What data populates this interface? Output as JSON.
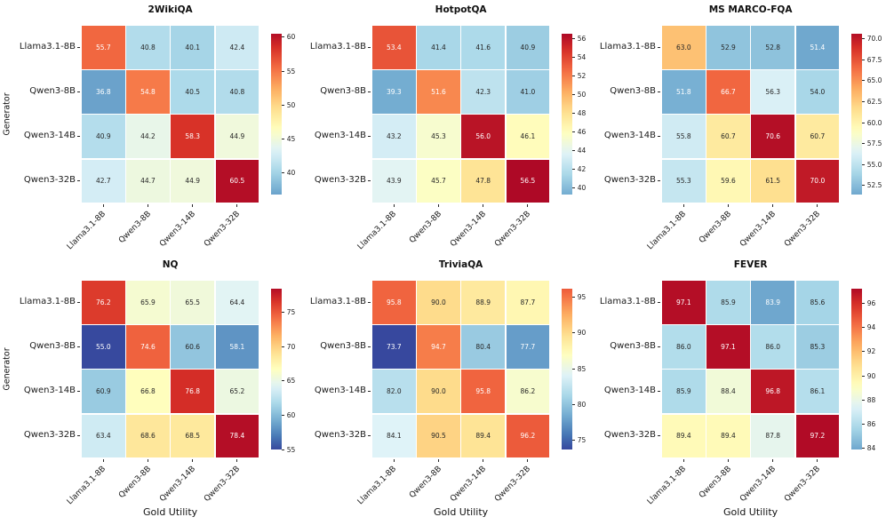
{
  "figure": {
    "background": "#ffffff",
    "ylabel": "Generator",
    "xlabel": "Gold Utility",
    "generators": [
      "Llama3.1-8B",
      "Qwen3-8B",
      "Qwen3-14B",
      "Qwen3-32B"
    ],
    "annotation_text_dark": "#262626",
    "annotation_text_light": "#ffffff",
    "colormap_name": "RdYlBu_r",
    "colormap_stops": [
      "#313695",
      "#4575b4",
      "#74add1",
      "#abd9e9",
      "#e0f3f8",
      "#ffffbf",
      "#fee090",
      "#fdae61",
      "#f46d43",
      "#d73027",
      "#a50026"
    ]
  },
  "chart_data": [
    {
      "type": "heatmap",
      "slug": "2wikiqa",
      "title": "2WikiQA",
      "categories": [
        "Llama3.1-8B",
        "Qwen3-8B",
        "Qwen3-14B",
        "Qwen3-32B"
      ],
      "values": [
        [
          55.7,
          40.8,
          40.1,
          42.4
        ],
        [
          36.8,
          54.8,
          40.5,
          40.8
        ],
        [
          40.9,
          44.2,
          58.3,
          44.9
        ],
        [
          42.7,
          44.7,
          44.9,
          60.5
        ]
      ],
      "color_domain": [
        31.4,
        61.4
      ],
      "colorbar": {
        "range": [
          36.8,
          60.5
        ],
        "tick_values": [
          60,
          55,
          50,
          45,
          40
        ],
        "tick_labels": [
          "60",
          "55",
          "50",
          "45",
          "40"
        ]
      },
      "show_ylabel": true,
      "show_xlabel": false
    },
    {
      "type": "heatmap",
      "slug": "hotpotqa",
      "title": "HotpotQA",
      "categories": [
        "Llama3.1-8B",
        "Qwen3-8B",
        "Qwen3-14B",
        "Qwen3-32B"
      ],
      "values": [
        [
          53.4,
          41.4,
          41.6,
          40.9
        ],
        [
          39.3,
          51.6,
          42.3,
          41.0
        ],
        [
          43.2,
          45.3,
          56.0,
          46.1
        ],
        [
          43.9,
          45.7,
          47.8,
          56.5
        ]
      ],
      "color_domain": [
        34.9,
        56.9
      ],
      "colorbar": {
        "range": [
          39.3,
          56.5
        ],
        "tick_values": [
          56,
          54,
          52,
          50,
          48,
          46,
          44,
          42,
          40
        ],
        "tick_labels": [
          "56",
          "54",
          "52",
          "50",
          "48",
          "46",
          "44",
          "42",
          "40"
        ]
      },
      "show_ylabel": false,
      "show_xlabel": false
    },
    {
      "type": "heatmap",
      "slug": "ms-marco-fqa",
      "title": "MS MARCO-FQA",
      "categories": [
        "Llama3.1-8B",
        "Qwen3-8B",
        "Qwen3-14B",
        "Qwen3-32B"
      ],
      "values": [
        [
          63.0,
          52.9,
          52.8,
          51.4
        ],
        [
          51.8,
          66.7,
          56.3,
          54.0
        ],
        [
          55.8,
          60.7,
          70.6,
          60.7
        ],
        [
          55.3,
          59.6,
          61.5,
          70.0
        ]
      ],
      "color_domain": [
        46.7,
        71.35
      ],
      "colorbar": {
        "range": [
          51.4,
          70.6
        ],
        "tick_values": [
          70,
          67.5,
          65,
          62.5,
          60,
          57.5,
          55,
          52.5
        ],
        "tick_labels": [
          "70.0",
          "67.5",
          "65.0",
          "62.5",
          "60.0",
          "57.5",
          "55.0",
          "52.5"
        ]
      },
      "show_ylabel": false,
      "show_xlabel": false
    },
    {
      "type": "heatmap",
      "slug": "nq",
      "title": "NQ",
      "categories": [
        "Llama3.1-8B",
        "Qwen3-8B",
        "Qwen3-14B",
        "Qwen3-32B"
      ],
      "values": [
        [
          76.2,
          65.9,
          65.5,
          64.4
        ],
        [
          55.0,
          74.6,
          60.6,
          58.1
        ],
        [
          60.9,
          66.8,
          76.8,
          65.2
        ],
        [
          63.4,
          68.6,
          68.5,
          78.4
        ]
      ],
      "color_domain": [
        54.25,
        79.15
      ],
      "colorbar": {
        "range": [
          55.0,
          78.4
        ],
        "tick_values": [
          75,
          70,
          65,
          60,
          55
        ],
        "tick_labels": [
          "75",
          "70",
          "65",
          "60",
          "55"
        ]
      },
      "show_ylabel": true,
      "show_xlabel": true
    },
    {
      "type": "heatmap",
      "slug": "triviaqa",
      "title": "TriviaQA",
      "categories": [
        "Llama3.1-8B",
        "Qwen3-8B",
        "Qwen3-14B",
        "Qwen3-32B"
      ],
      "values": [
        [
          95.8,
          90.0,
          88.9,
          87.7
        ],
        [
          73.7,
          94.7,
          80.4,
          77.7
        ],
        [
          82.0,
          90.0,
          95.8,
          86.2
        ],
        [
          84.1,
          90.5,
          89.4,
          96.2
        ]
      ],
      "color_domain": [
        72.9,
        101.0
      ],
      "colorbar": {
        "range": [
          73.7,
          96.2
        ],
        "tick_values": [
          95,
          90,
          85,
          80,
          75
        ],
        "tick_labels": [
          "95",
          "90",
          "85",
          "80",
          "75"
        ]
      },
      "show_ylabel": false,
      "show_xlabel": true
    },
    {
      "type": "heatmap",
      "slug": "fever",
      "title": "FEVER",
      "categories": [
        "Llama3.1-8B",
        "Qwen3-8B",
        "Qwen3-14B",
        "Qwen3-32B"
      ],
      "values": [
        [
          97.1,
          85.9,
          83.9,
          85.6
        ],
        [
          86.0,
          97.1,
          86.0,
          85.3
        ],
        [
          85.9,
          88.4,
          96.8,
          86.1
        ],
        [
          89.4,
          89.4,
          87.8,
          97.2
        ]
      ],
      "color_domain": [
        80.7,
        97.6
      ],
      "colorbar": {
        "range": [
          83.9,
          97.2
        ],
        "tick_values": [
          96,
          94,
          92,
          90,
          88,
          86,
          84
        ],
        "tick_labels": [
          "96",
          "94",
          "92",
          "90",
          "88",
          "86",
          "84"
        ]
      },
      "show_ylabel": false,
      "show_xlabel": true
    }
  ]
}
